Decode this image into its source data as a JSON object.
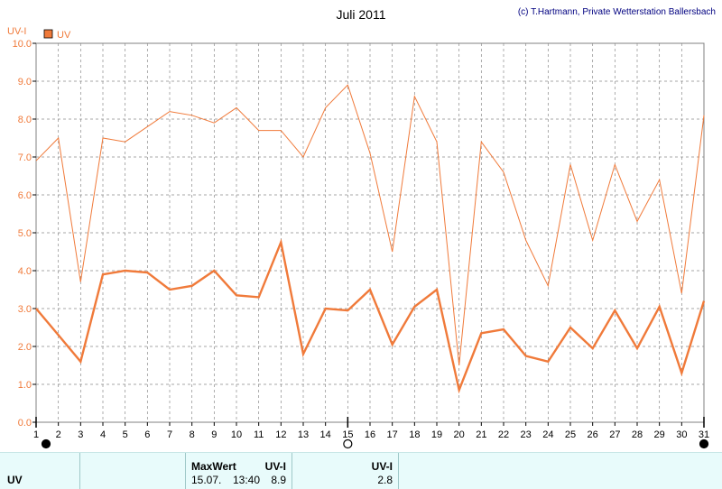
{
  "chart_data": {
    "type": "line",
    "title": "Juli 2011",
    "credit": "(c) T.Hartmann, Private Wetterstation Ballersbach",
    "ylabel": "UV-I",
    "ylim": [
      0,
      10
    ],
    "yticks": [
      "0.0",
      "1.0",
      "2.0",
      "3.0",
      "4.0",
      "5.0",
      "6.0",
      "7.0",
      "8.0",
      "9.0",
      "10.0"
    ],
    "x": [
      1,
      2,
      3,
      4,
      5,
      6,
      7,
      8,
      9,
      10,
      11,
      12,
      13,
      14,
      15,
      16,
      17,
      18,
      19,
      20,
      21,
      22,
      23,
      24,
      25,
      26,
      27,
      28,
      29,
      30,
      31
    ],
    "grid": true,
    "legend": "top-left",
    "series": [
      {
        "name": "UV",
        "style": "max-thin",
        "color": "#f07a3a",
        "values": [
          6.9,
          7.5,
          3.7,
          7.5,
          7.4,
          7.8,
          8.2,
          8.1,
          7.9,
          8.3,
          7.7,
          7.7,
          7.0,
          8.3,
          8.9,
          7.1,
          4.5,
          8.6,
          7.4,
          1.5,
          7.4,
          6.6,
          4.8,
          3.6,
          6.8,
          4.8,
          6.8,
          5.3,
          6.4,
          3.4,
          8.1
        ]
      },
      {
        "style": "mean-thick",
        "color": "#f07a3a",
        "values": [
          3.0,
          2.3,
          1.6,
          3.9,
          4.0,
          3.95,
          3.5,
          3.6,
          4.0,
          3.35,
          3.3,
          4.75,
          1.8,
          3.0,
          2.95,
          3.5,
          2.05,
          3.05,
          3.5,
          0.85,
          2.35,
          2.45,
          1.75,
          1.6,
          2.5,
          1.95,
          2.95,
          1.95,
          3.05,
          1.3,
          3.2
        ]
      }
    ],
    "moon_markers": [
      {
        "day": 1,
        "phase": "new-moon"
      },
      {
        "day": 15,
        "phase": "full-moon"
      },
      {
        "day": 31,
        "phase": "new-moon"
      }
    ]
  },
  "footer": {
    "row_label": "UV",
    "maxwert_label": "MaxWert",
    "maxwert_unit": "UV-I",
    "maxwert_date": "15.07.",
    "maxwert_time": "13:40",
    "maxwert_value": "8.9",
    "mean_unit": "UV-I",
    "mean_value": "2.8"
  },
  "colors": {
    "series": "#f07a3a",
    "title": "#000000",
    "credit": "#000080",
    "axis_label": "#f07a3a",
    "footer_bg": "#e8fbfb"
  }
}
